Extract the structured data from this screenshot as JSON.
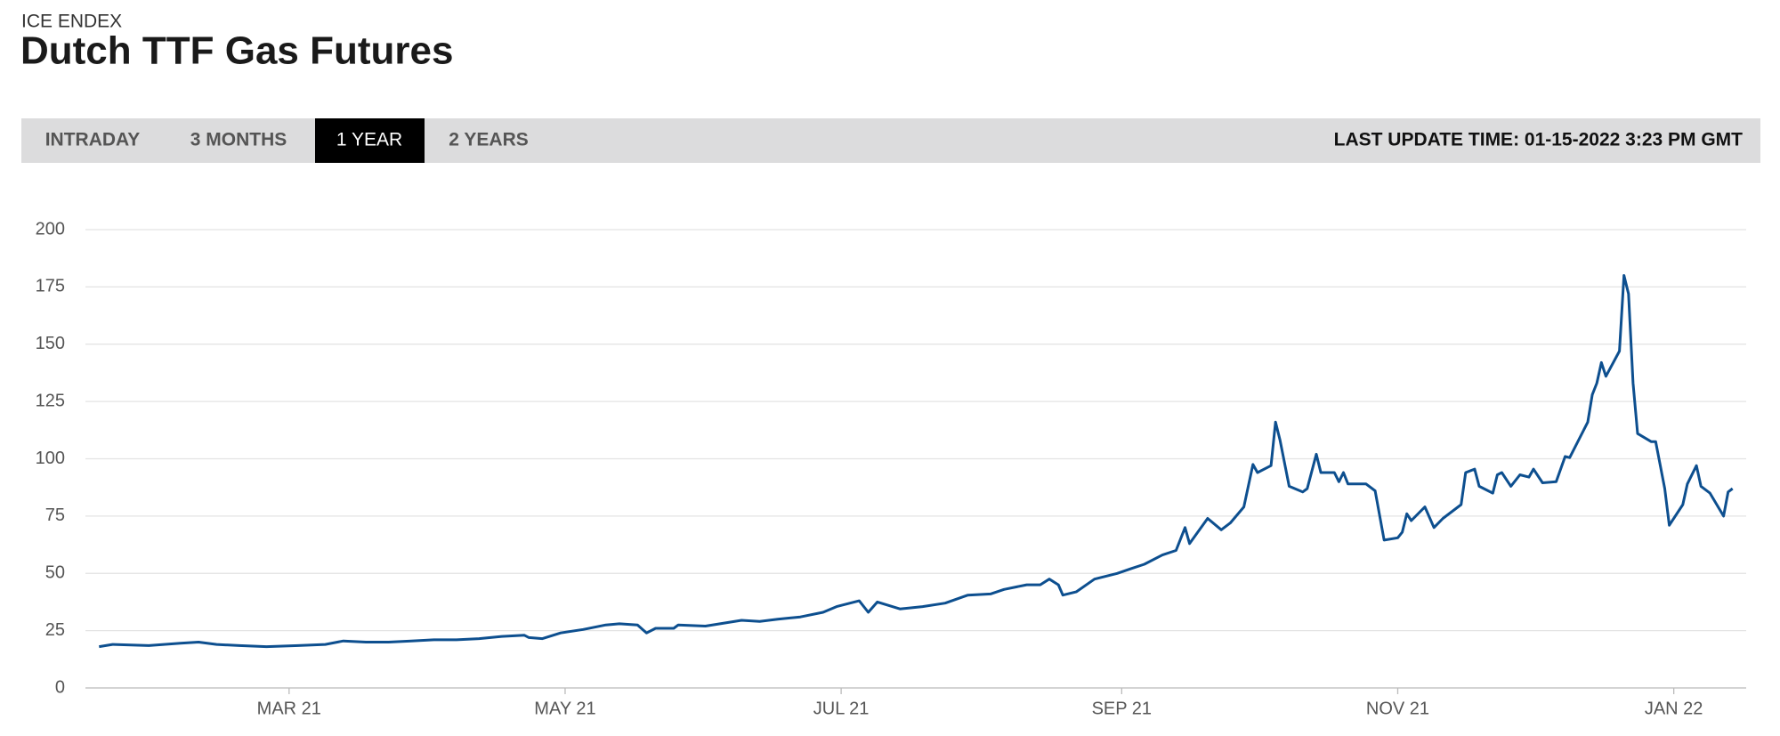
{
  "header": {
    "source": "ICE ENDEX",
    "title": "Dutch TTF Gas Futures"
  },
  "tabs": [
    "INTRADAY",
    "3 MONTHS",
    "1 YEAR",
    "2 YEARS"
  ],
  "last_update": "LAST UPDATE TIME: 01-15-2022 3:23 PM GMT",
  "chart_data": {
    "type": "line",
    "color": "#0d4f8f",
    "grid": true,
    "x": [
      17,
      20,
      28,
      35,
      39,
      43,
      48,
      54,
      61,
      67,
      71,
      76,
      81,
      86,
      91,
      96,
      101,
      106,
      111,
      112,
      115,
      119,
      124,
      129,
      132,
      136,
      138,
      140,
      144,
      145,
      151,
      159,
      163,
      167,
      172,
      177,
      180,
      185,
      187,
      189,
      194,
      199,
      204,
      209,
      214,
      217,
      222,
      225,
      227,
      229,
      230,
      233,
      237,
      242,
      245,
      248,
      252,
      255,
      257,
      258,
      262,
      265,
      267,
      270,
      272,
      273,
      276,
      277,
      278,
      280,
      283,
      284,
      286,
      287,
      290,
      291,
      292,
      293,
      297,
      299,
      301,
      304,
      305,
      306,
      307,
      310,
      312,
      314,
      318,
      319,
      321,
      322,
      325,
      326,
      327,
      329,
      331,
      333,
      334,
      336,
      339,
      341,
      342,
      346,
      347,
      348,
      349,
      350,
      353,
      354,
      355,
      356,
      357,
      360,
      361,
      363,
      364,
      367,
      368,
      370,
      371,
      373,
      376,
      377,
      378
    ],
    "values": [
      18,
      19,
      18.5,
      19.5,
      20,
      19,
      18.5,
      18,
      18.5,
      19,
      20.5,
      20,
      20,
      20.5,
      21,
      21,
      21.5,
      22.5,
      23,
      22,
      21.5,
      24,
      25.5,
      27.5,
      28,
      27.5,
      24,
      26,
      26,
      27.5,
      27,
      29.5,
      29,
      30,
      31,
      33,
      35.5,
      38,
      33,
      37.5,
      34.5,
      35.5,
      37,
      40.5,
      41,
      43,
      45,
      45,
      47.5,
      45,
      40.5,
      42,
      47.5,
      50,
      52,
      54,
      58,
      60,
      70,
      63,
      74,
      69,
      72,
      79,
      97.5,
      94,
      97,
      116,
      108,
      88,
      85.5,
      87,
      102,
      94,
      94,
      90,
      94,
      89,
      89,
      86,
      64.5,
      65.5,
      68,
      76,
      73,
      79,
      70,
      74,
      80,
      94,
      95.5,
      88,
      85,
      93,
      94,
      88,
      93,
      92,
      95.5,
      89.5,
      90,
      101,
      100.5,
      116,
      128,
      133,
      142,
      136,
      147,
      180,
      172,
      133,
      111,
      107.5,
      107.5,
      87,
      71,
      80,
      89,
      97,
      88,
      85,
      75,
      85.5,
      87
    ],
    "xlim": [
      14,
      381
    ],
    "xticks": [
      {
        "value": 59,
        "label": "MAR 21"
      },
      {
        "value": 120,
        "label": "MAY 21"
      },
      {
        "value": 181,
        "label": "JUL 21"
      },
      {
        "value": 243,
        "label": "SEP 21"
      },
      {
        "value": 304,
        "label": "NOV 21"
      },
      {
        "value": 365,
        "label": "JAN 22"
      }
    ],
    "ylim": [
      0,
      200
    ],
    "yticks": [
      0,
      25,
      50,
      75,
      100,
      125,
      150,
      175,
      200
    ]
  }
}
